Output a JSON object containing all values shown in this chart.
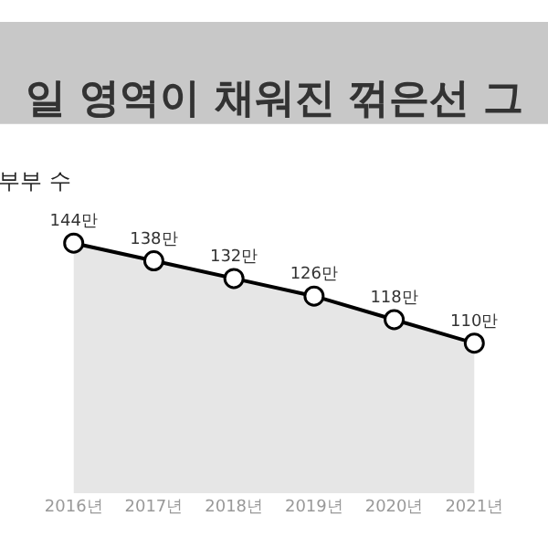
{
  "chart_data": {
    "type": "area",
    "title": "일 영역이 채워진 꺾은선 그",
    "subtitle": "부부 수",
    "x": [
      2016,
      2017,
      2018,
      2019,
      2020,
      2021
    ],
    "xlim": [
      2015.08,
      2021.92
    ],
    "xticks": [
      {
        "value": 2016,
        "label": "2016년"
      },
      {
        "value": 2017,
        "label": "2017년"
      },
      {
        "value": 2018,
        "label": "2018년"
      },
      {
        "value": 2019,
        "label": "2019년"
      },
      {
        "value": 2020,
        "label": "2020년"
      },
      {
        "value": 2021,
        "label": "2021년"
      }
    ],
    "tick_labels": "x",
    "marker": "circle",
    "series": [
      {
        "color": "#000000",
        "values": [
          144,
          138,
          132,
          126,
          118,
          110
        ],
        "value_labels": [
          "144만",
          "138만",
          "132만",
          "126만",
          "118만",
          "110만"
        ]
      }
    ]
  }
}
